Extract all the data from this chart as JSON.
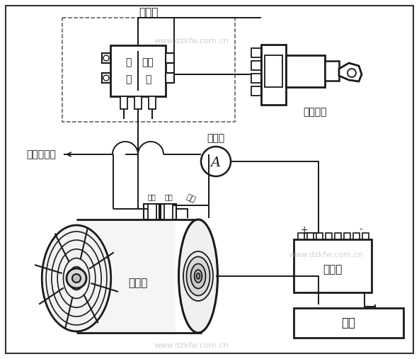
{
  "bg_color": "#ffffff",
  "lc": "#1a1a1a",
  "watermark": "www.dzkfw.com.cn",
  "labels": {
    "regulator": "调节器",
    "switch_open": "开",
    "switch_close": "关",
    "field": "磁场",
    "ignition": "点火开关",
    "ammeter_label": "电流表",
    "load_label": "接用电设备",
    "generator_label": "发电机",
    "battery_label": "蓄电池",
    "frame_label": "车架",
    "armature_label": "电枢",
    "field_conn": "磁场",
    "ground_label": "接地"
  },
  "fig_width": 5.92,
  "fig_height": 5.07,
  "dpi": 100
}
